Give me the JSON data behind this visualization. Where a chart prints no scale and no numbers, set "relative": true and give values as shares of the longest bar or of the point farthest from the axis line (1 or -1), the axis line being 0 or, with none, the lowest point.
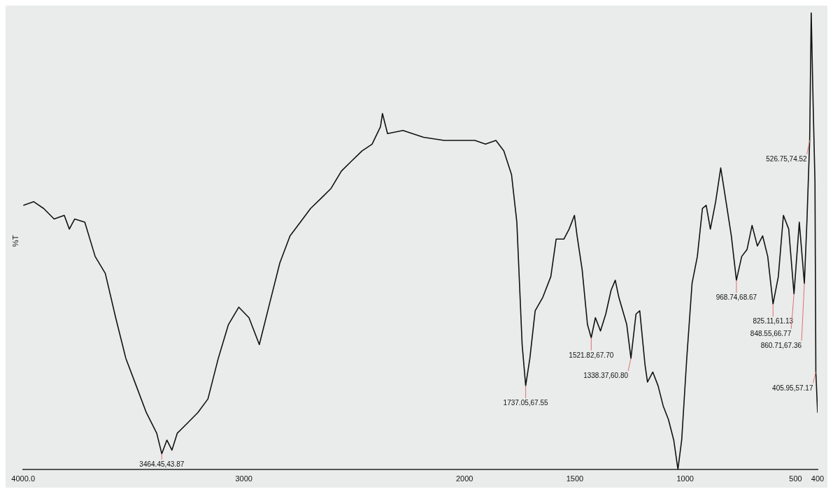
{
  "chart_data": {
    "type": "line",
    "relative": true,
    "ylabel": "%T",
    "tick_labels": "x",
    "grid": false,
    "legend": false,
    "marker": "none",
    "line_style": "solid",
    "xlim": [
      4000,
      400
    ],
    "xticks": [
      {
        "value": 4000,
        "label": "4000.0"
      },
      3000,
      2000,
      1500,
      1000,
      500,
      400
    ],
    "series": [
      {
        "color": "#111111",
        "x": [
          4000,
          3953,
          3907,
          3860,
          3814,
          3791,
          3767,
          3721,
          3674,
          3628,
          3581,
          3535,
          3488,
          3442,
          3395,
          3372,
          3349,
          3326,
          3302,
          3256,
          3209,
          3163,
          3116,
          3070,
          3023,
          2977,
          2930,
          2884,
          2837,
          2791,
          2744,
          2698,
          2651,
          2605,
          2558,
          2512,
          2465,
          2419,
          2381,
          2372,
          2349,
          2279,
          2186,
          2093,
          2000,
          1953,
          1905,
          1858,
          1822,
          1787,
          1763,
          1739,
          1723,
          1704,
          1680,
          1645,
          1609,
          1585,
          1550,
          1526,
          1502,
          1490,
          1467,
          1443,
          1426,
          1407,
          1384,
          1360,
          1336,
          1317,
          1301,
          1265,
          1246,
          1223,
          1206,
          1182,
          1171,
          1147,
          1123,
          1100,
          1076,
          1052,
          1033,
          1016,
          993,
          969,
          945,
          922,
          905,
          886,
          862,
          839,
          815,
          791,
          768,
          744,
          720,
          697,
          673,
          649,
          626,
          602,
          578,
          555,
          531,
          507,
          483,
          460,
          448,
          436,
          429,
          420,
          412,
          408,
          400
        ],
        "values": [
          0.578,
          0.586,
          0.571,
          0.548,
          0.556,
          0.526,
          0.548,
          0.541,
          0.466,
          0.429,
          0.332,
          0.243,
          0.183,
          0.124,
          0.079,
          0.034,
          0.064,
          0.042,
          0.079,
          0.101,
          0.124,
          0.154,
          0.243,
          0.317,
          0.355,
          0.332,
          0.273,
          0.362,
          0.452,
          0.511,
          0.541,
          0.571,
          0.593,
          0.615,
          0.653,
          0.675,
          0.697,
          0.712,
          0.75,
          0.779,
          0.735,
          0.742,
          0.727,
          0.72,
          0.72,
          0.72,
          0.712,
          0.72,
          0.697,
          0.645,
          0.541,
          0.273,
          0.183,
          0.243,
          0.347,
          0.377,
          0.422,
          0.504,
          0.504,
          0.526,
          0.556,
          0.511,
          0.437,
          0.317,
          0.288,
          0.332,
          0.303,
          0.34,
          0.392,
          0.414,
          0.377,
          0.317,
          0.243,
          0.34,
          0.347,
          0.228,
          0.191,
          0.213,
          0.183,
          0.139,
          0.109,
          0.064,
          0,
          0.064,
          0.243,
          0.407,
          0.466,
          0.571,
          0.578,
          0.526,
          0.586,
          0.66,
          0.586,
          0.511,
          0.414,
          0.466,
          0.481,
          0.534,
          0.489,
          0.511,
          0.466,
          0.362,
          0.422,
          0.556,
          0.526,
          0.384,
          0.541,
          0.407,
          0.548,
          0.72,
          1,
          0.794,
          0.63,
          0.213,
          0.124
        ]
      }
    ],
    "annotations": [
      {
        "text": "3464.45,43.87",
        "x": 3372,
        "y": 0.034
      },
      {
        "text": "1737.05,67.55",
        "x": 1723,
        "y": 0.183
      },
      {
        "text": "1521.82,67.70",
        "x": 1426,
        "y": 0.288
      },
      {
        "text": "1338.37,60.80",
        "x": 1246,
        "y": 0.243
      },
      {
        "text": "968.74,68.67",
        "x": 768,
        "y": 0.414
      },
      {
        "text": "825.11,61.13",
        "x": 602,
        "y": 0.362
      },
      {
        "text": "848.55,66.77",
        "x": 507,
        "y": 0.384
      },
      {
        "text": "860.71,67.36",
        "x": 460,
        "y": 0.407
      },
      {
        "text": "526.75,74.52",
        "x": 436,
        "y": 0.72
      },
      {
        "text": "405.95,57.17",
        "x": 408,
        "y": 0.213
      }
    ]
  }
}
